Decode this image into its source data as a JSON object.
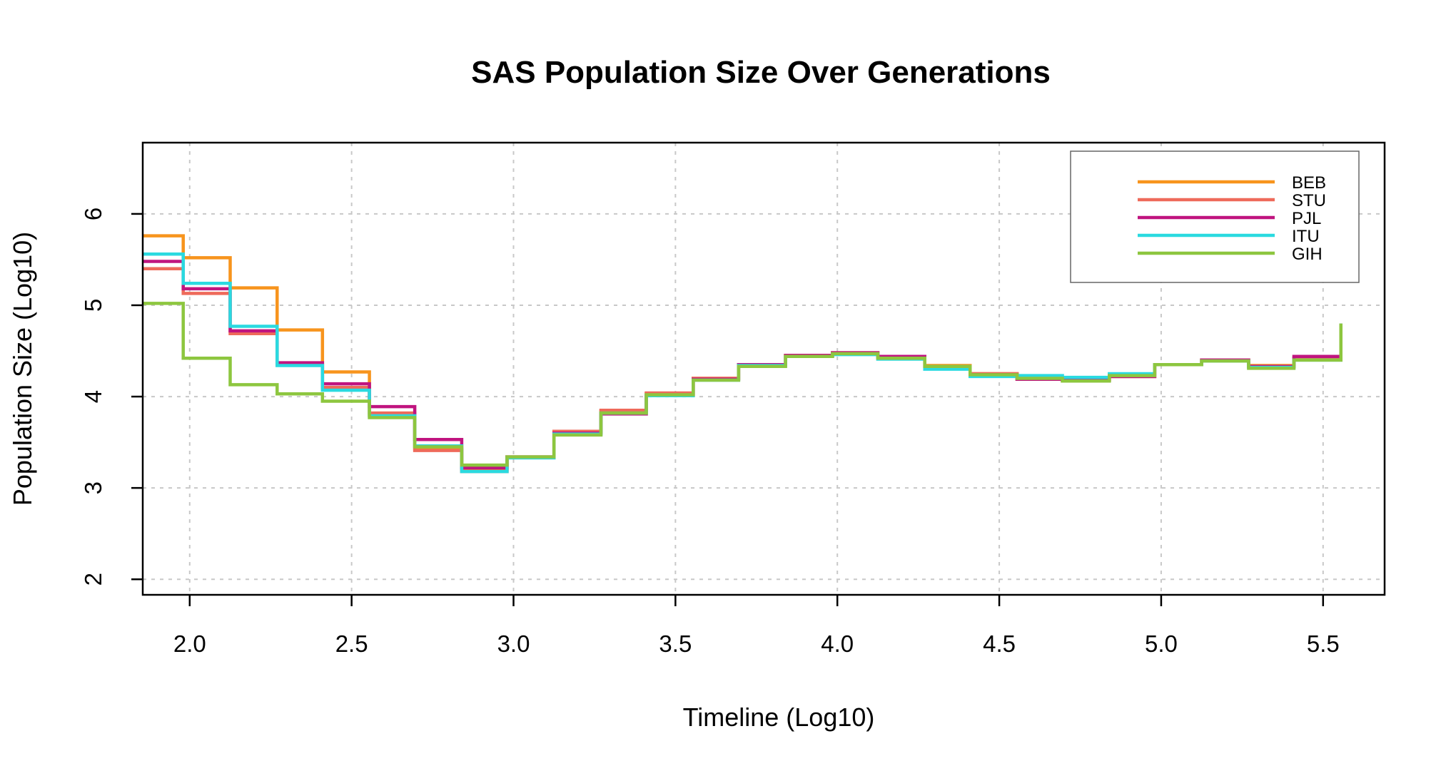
{
  "chart_data": {
    "type": "line",
    "step": true,
    "title": "SAS Population Size Over Generations",
    "xlabel": "Timeline (Log10)",
    "ylabel": "Population Size (Log10)",
    "xlim": [
      1.855,
      5.69
    ],
    "ylim": [
      1.83,
      6.78
    ],
    "xticks": [
      2.0,
      2.5,
      3.0,
      3.5,
      4.0,
      4.5,
      5.0,
      5.5
    ],
    "xtick_labels": [
      "2.0",
      "2.5",
      "3.0",
      "3.5",
      "4.0",
      "4.5",
      "5.0",
      "5.5"
    ],
    "yticks": [
      2,
      3,
      4,
      5,
      6
    ],
    "ytick_labels": [
      "2",
      "3",
      "4",
      "5",
      "6"
    ],
    "grid": true,
    "legend_position": "top-right",
    "x": [
      1.855,
      1.98,
      2.125,
      2.27,
      2.41,
      2.555,
      2.695,
      2.84,
      2.98,
      3.125,
      3.27,
      3.41,
      3.555,
      3.695,
      3.84,
      3.985,
      4.125,
      4.27,
      4.41,
      4.555,
      4.695,
      4.84,
      4.98,
      5.125,
      5.27,
      5.41,
      5.555
    ],
    "series": [
      {
        "name": "BEB",
        "color": "#F7941D",
        "values": [
          5.76,
          5.52,
          5.19,
          4.73,
          4.27,
          3.8,
          3.43,
          3.2,
          3.34,
          3.61,
          3.84,
          4.03,
          4.2,
          4.35,
          4.45,
          4.48,
          4.44,
          4.34,
          4.25,
          4.2,
          4.19,
          4.22,
          4.35,
          4.4,
          4.34,
          4.42,
          4.8
        ]
      },
      {
        "name": "STU",
        "color": "#EE6A5A",
        "values": [
          5.4,
          5.13,
          4.69,
          4.35,
          4.1,
          3.82,
          3.41,
          3.18,
          3.33,
          3.62,
          3.85,
          4.04,
          4.2,
          4.35,
          4.45,
          4.48,
          4.43,
          4.33,
          4.25,
          4.19,
          4.18,
          4.22,
          4.35,
          4.4,
          4.33,
          4.42,
          4.8
        ]
      },
      {
        "name": "PJL",
        "color": "#C0147F",
        "values": [
          5.48,
          5.18,
          4.72,
          4.37,
          4.14,
          3.89,
          3.53,
          3.22,
          3.34,
          3.6,
          3.81,
          4.01,
          4.19,
          4.35,
          4.45,
          4.48,
          4.44,
          4.33,
          4.24,
          4.19,
          4.18,
          4.22,
          4.35,
          4.4,
          4.33,
          4.44,
          4.8
        ]
      },
      {
        "name": "ITU",
        "color": "#2ADAE0",
        "values": [
          5.56,
          5.24,
          4.77,
          4.34,
          4.07,
          3.79,
          3.46,
          3.18,
          3.33,
          3.59,
          3.82,
          4.01,
          4.18,
          4.34,
          4.44,
          4.46,
          4.41,
          4.3,
          4.22,
          4.23,
          4.21,
          4.25,
          4.35,
          4.39,
          4.32,
          4.4,
          4.8
        ]
      },
      {
        "name": "GIH",
        "color": "#8DC63F",
        "values": [
          5.02,
          4.42,
          4.13,
          4.03,
          3.95,
          3.77,
          3.45,
          3.25,
          3.34,
          3.58,
          3.82,
          4.02,
          4.18,
          4.33,
          4.44,
          4.47,
          4.42,
          4.33,
          4.24,
          4.2,
          4.17,
          4.23,
          4.35,
          4.39,
          4.31,
          4.4,
          4.8
        ]
      }
    ]
  }
}
